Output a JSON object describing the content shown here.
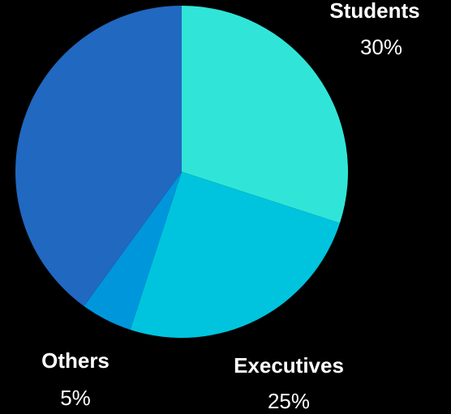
{
  "chart_data": {
    "type": "pie",
    "slices": [
      {
        "label": "Students",
        "value_text": "30%",
        "value": 30,
        "color": "#30e5d8"
      },
      {
        "label": "Executives",
        "value_text": "25%",
        "value": 25,
        "color": "#00c4de"
      },
      {
        "label": "Others",
        "value_text": "5%",
        "value": 5,
        "color": "#0096dc"
      },
      {
        "label": "",
        "value_text": "",
        "value": 40,
        "color": "#2168c0"
      }
    ],
    "start_angle": "12 o'clock",
    "direction": "clockwise"
  }
}
